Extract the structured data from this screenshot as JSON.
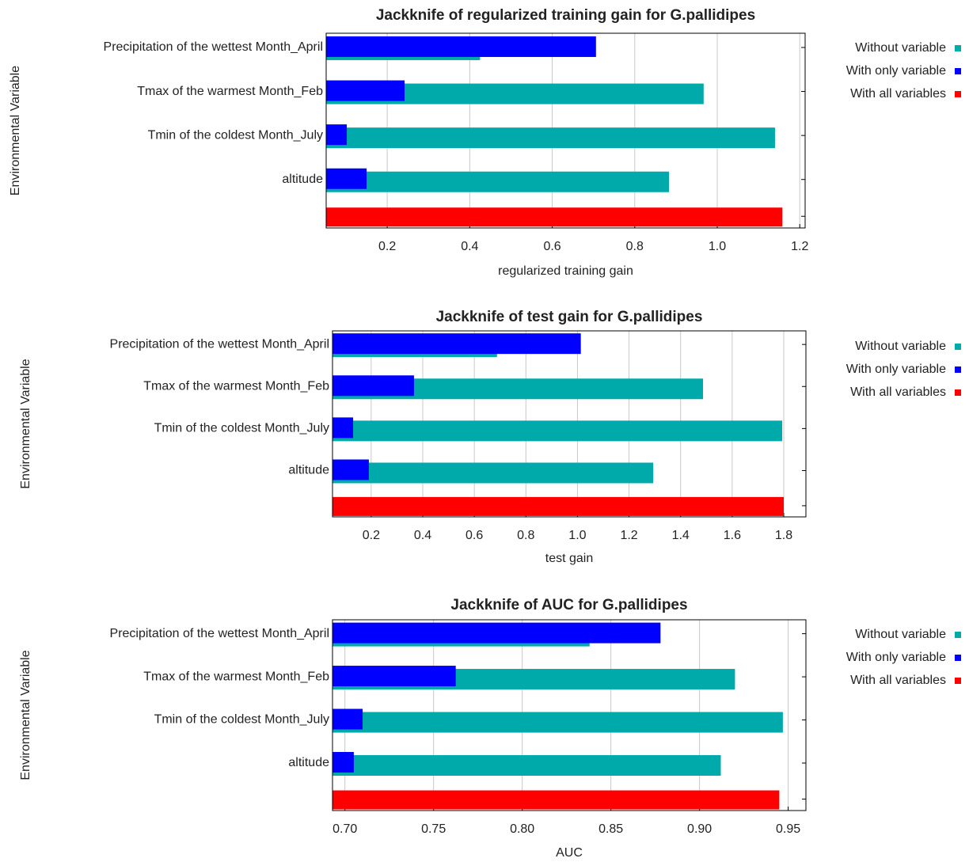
{
  "chart_data": [
    {
      "type": "bar",
      "orientation": "horizontal",
      "title": "Jackknife of regularized training gain for G.pallidipes",
      "xlabel": "regularized training gain",
      "ylabel": "Environmental Variable",
      "categories": [
        "Precipitation of the wettest Month_April",
        "Tmax of the warmest Month_Feb",
        "Tmin of the coldest Month_July",
        "altitude",
        null
      ],
      "series": [
        {
          "name": "Without variable",
          "color": "#00aaaa",
          "values": [
            0.425,
            0.967,
            1.14,
            0.883,
            null
          ]
        },
        {
          "name": "With only variable",
          "color": "#0000ff",
          "values": [
            0.706,
            0.242,
            0.102,
            0.15,
            null
          ]
        },
        {
          "name": "With all variables",
          "color": "#ff0000",
          "values": [
            null,
            null,
            null,
            null,
            1.158
          ]
        }
      ],
      "xlim": [
        0.052,
        1.213
      ],
      "xticks": [
        0.2,
        0.4,
        0.6,
        0.8,
        {
          "value": 1,
          "label": "1.0"
        },
        1.2
      ],
      "grid": true,
      "legend": "right"
    },
    {
      "type": "bar",
      "orientation": "horizontal",
      "title": "Jackknife of test gain for G.pallidipes",
      "xlabel": "test gain",
      "ylabel": "Environmental Variable",
      "categories": [
        "Precipitation of the wettest Month_April",
        "Tmax of the warmest Month_Feb",
        "Tmin of the coldest Month_July",
        "altitude",
        null
      ],
      "series": [
        {
          "name": "Without variable",
          "color": "#00aaaa",
          "values": [
            0.688,
            1.487,
            1.794,
            1.294,
            null
          ]
        },
        {
          "name": "With only variable",
          "color": "#0000ff",
          "values": [
            1.013,
            0.366,
            0.13,
            0.191,
            null
          ]
        },
        {
          "name": "With all variables",
          "color": "#ff0000",
          "values": [
            null,
            null,
            null,
            null,
            1.8
          ]
        }
      ],
      "xlim": [
        0.05,
        1.886
      ],
      "xticks": [
        0.2,
        0.4,
        0.6,
        0.8,
        {
          "value": 1,
          "label": "1.0"
        },
        1.2,
        1.4,
        1.6,
        1.8
      ],
      "grid": true,
      "legend": "right"
    },
    {
      "type": "bar",
      "orientation": "horizontal",
      "title": "Jackknife of AUC for G.pallidipes",
      "xlabel": "AUC",
      "ylabel": "Environmental Variable",
      "categories": [
        "Precipitation of the wettest Month_April",
        "Tmax of the warmest Month_Feb",
        "Tmin of the coldest Month_July",
        "altitude",
        null
      ],
      "series": [
        {
          "name": "Without variable",
          "color": "#00aaaa",
          "values": [
            0.838,
            0.92,
            0.947,
            0.912,
            null
          ]
        },
        {
          "name": "With only variable",
          "color": "#0000ff",
          "values": [
            0.878,
            0.7625,
            0.71,
            0.705,
            null
          ]
        },
        {
          "name": "With all variables",
          "color": "#ff0000",
          "values": [
            null,
            null,
            null,
            null,
            0.945
          ]
        }
      ],
      "xlim": [
        0.693,
        0.96
      ],
      "xticks": [
        {
          "value": 0.7,
          "label": "0.70"
        },
        0.75,
        {
          "value": 0.8,
          "label": "0.80"
        },
        0.85,
        {
          "value": 0.9,
          "label": "0.90"
        },
        0.95
      ],
      "grid": true,
      "legend": "right"
    }
  ]
}
